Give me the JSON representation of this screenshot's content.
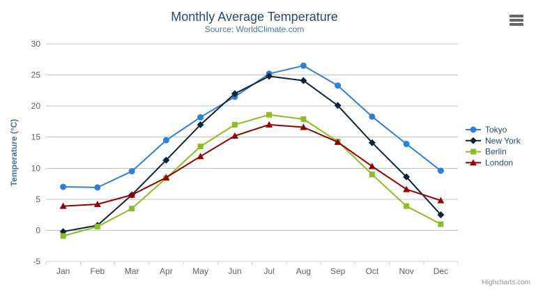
{
  "credits": {
    "label": "Highcharts.com"
  },
  "menu": {
    "name": "chart-context-menu"
  },
  "colors": {
    "title": "#274b6d",
    "subtitle": "#4d759e",
    "axis_title": "#4572a7",
    "axis_labels": "#606060",
    "grid_line": "#c0c0c0",
    "axis_line": "#c0d0e0",
    "legend_text": "#274b6d",
    "credits_text": "#909090",
    "menu_icon": "#666666"
  },
  "chart_data": {
    "type": "line",
    "title": "Monthly Average Temperature",
    "subtitle": "Source: WorldClimate.com",
    "xlabel": "",
    "ylabel": "Temperature (°C)",
    "ylim": [
      -5,
      30
    ],
    "ytick_interval": 5,
    "grid": true,
    "legend_position": "right",
    "categories": [
      "Jan",
      "Feb",
      "Mar",
      "Apr",
      "May",
      "Jun",
      "Jul",
      "Aug",
      "Sep",
      "Oct",
      "Nov",
      "Dec"
    ],
    "series": [
      {
        "name": "Tokyo",
        "color": "#2f7ed8",
        "marker": "circle",
        "values": [
          7.0,
          6.9,
          9.5,
          14.5,
          18.2,
          21.5,
          25.2,
          26.5,
          23.3,
          18.3,
          13.9,
          9.6
        ]
      },
      {
        "name": "New York",
        "color": "#0d233a",
        "marker": "diamond",
        "values": [
          -0.2,
          0.8,
          5.7,
          11.3,
          17.0,
          22.0,
          24.8,
          24.1,
          20.1,
          14.1,
          8.6,
          2.5
        ]
      },
      {
        "name": "Berlin",
        "color": "#8bbc21",
        "marker": "square",
        "values": [
          -0.9,
          0.6,
          3.5,
          8.4,
          13.5,
          17.0,
          18.6,
          17.9,
          14.3,
          9.0,
          3.9,
          1.0
        ]
      },
      {
        "name": "London",
        "color": "#910000",
        "marker": "triangle",
        "values": [
          3.9,
          4.2,
          5.7,
          8.5,
          11.9,
          15.2,
          17.0,
          16.6,
          14.2,
          10.3,
          6.6,
          4.8
        ]
      }
    ]
  }
}
